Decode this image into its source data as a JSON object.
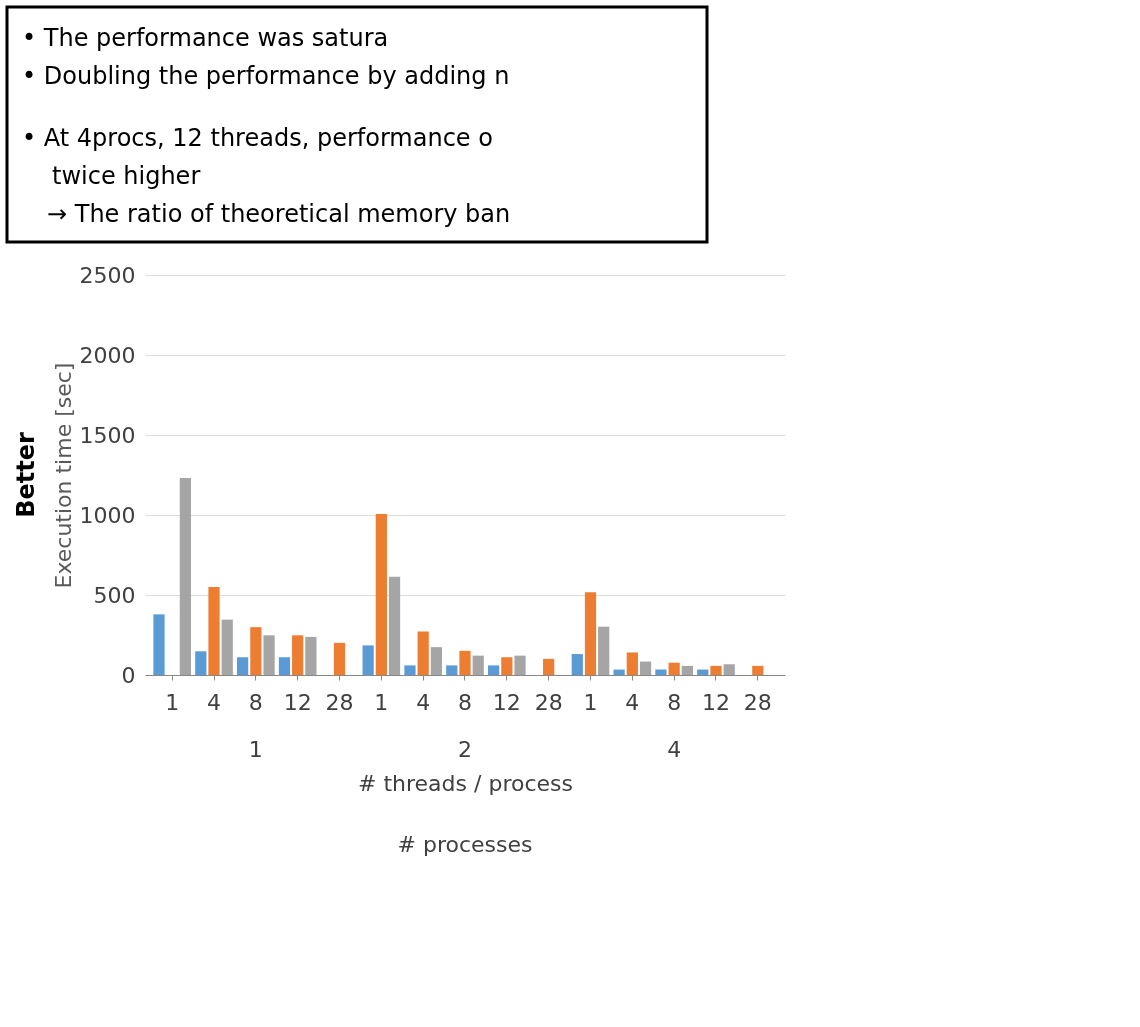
{
  "chart_data": {
    "type": "bar",
    "ylabel": "Execution time [sec]",
    "xlabel": "# threads / process",
    "categories": [
      "1",
      "4",
      "8",
      "12",
      "28",
      "1",
      "4",
      "8",
      "12",
      "28",
      "1",
      "4",
      "8",
      "12",
      "28"
    ],
    "series": [
      {
        "color": "#5b9bd5",
        "values": [
          379,
          148,
          111,
          111,
          null,
          185,
          60,
          60,
          60,
          null,
          131,
          34,
          34,
          34,
          null
        ]
      },
      {
        "color": "#ed7d31",
        "values": [
          null,
          550,
          299,
          248,
          201,
          1007,
          272,
          151,
          111,
          101,
          517,
          141,
          77,
          57,
          57
        ]
      },
      {
        "color": "#a5a5a5",
        "values": [
          1232,
          346,
          248,
          238,
          null,
          614,
          174,
          121,
          121,
          null,
          302,
          84,
          57,
          67,
          null
        ]
      }
    ],
    "ylim": [
      0,
      2500
    ],
    "yticks": [
      0,
      500,
      1000,
      1500,
      2000,
      2500
    ],
    "grid": "y",
    "legend": false,
    "annotations": [
      "• The performance was satura",
      "• Doubling the performance by adding n",
      "• At 4procs, 12 threads,  performance o",
      "twice higher",
      "→ The ratio of theoretical memory ban",
      "Better",
      "1",
      "2",
      "4",
      "# processes"
    ]
  }
}
